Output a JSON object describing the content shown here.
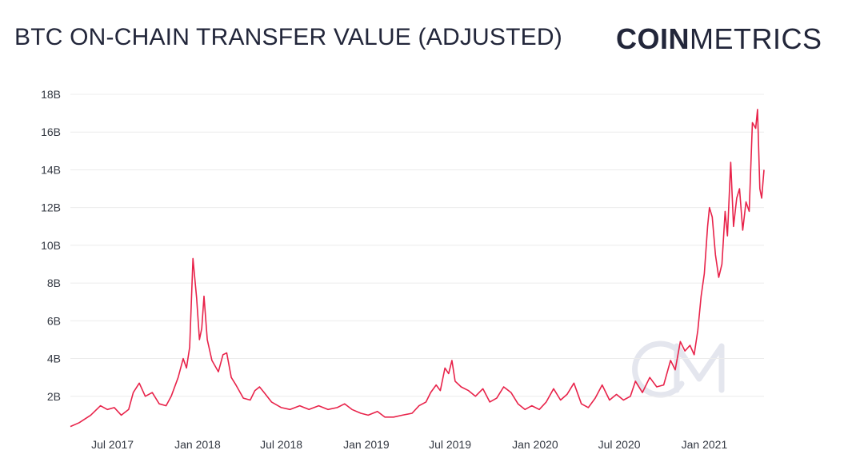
{
  "header": {
    "title": "BTC ON-CHAIN TRANSFER VALUE (ADJUSTED)",
    "brand_bold": "COIN",
    "brand_light": "METRICS"
  },
  "watermark": {
    "icon": "coinmetrics-cm-logo-icon",
    "color": "#e4e6ee"
  },
  "colors": {
    "line": "#e8234a",
    "grid": "#ececec",
    "text": "#22263a"
  },
  "chart_data": {
    "type": "line",
    "title": "BTC ON-CHAIN TRANSFER VALUE (ADJUSTED)",
    "xlabel": "",
    "ylabel": "",
    "ylim": [
      0,
      18
    ],
    "y_unit": "B",
    "y_ticks": [
      2,
      4,
      6,
      8,
      10,
      12,
      14,
      16,
      18
    ],
    "y_tick_labels": [
      "2B",
      "4B",
      "6B",
      "8B",
      "10B",
      "12B",
      "14B",
      "16B",
      "18B"
    ],
    "x_range": [
      "2017-04-01",
      "2021-05-10"
    ],
    "x_ticks": [
      "2017-07-01",
      "2018-01-01",
      "2018-07-01",
      "2019-01-01",
      "2019-07-01",
      "2020-01-01",
      "2020-07-01",
      "2021-01-01"
    ],
    "x_tick_labels": [
      "Jul 2017",
      "Jan 2018",
      "Jul 2018",
      "Jan 2019",
      "Jul 2019",
      "Jan 2020",
      "Jul 2020",
      "Jan 2021"
    ],
    "grid": true,
    "series": [
      {
        "color": "#e8234a",
        "points": [
          [
            "2017-04-01",
            0.4
          ],
          [
            "2017-04-20",
            0.6
          ],
          [
            "2017-05-15",
            1.0
          ],
          [
            "2017-06-05",
            1.5
          ],
          [
            "2017-06-20",
            1.3
          ],
          [
            "2017-07-05",
            1.4
          ],
          [
            "2017-07-20",
            1.0
          ],
          [
            "2017-08-05",
            1.3
          ],
          [
            "2017-08-15",
            2.2
          ],
          [
            "2017-08-28",
            2.7
          ],
          [
            "2017-09-10",
            2.0
          ],
          [
            "2017-09-25",
            2.2
          ],
          [
            "2017-10-10",
            1.6
          ],
          [
            "2017-10-25",
            1.5
          ],
          [
            "2017-11-05",
            2.0
          ],
          [
            "2017-11-20",
            3.0
          ],
          [
            "2017-12-01",
            4.0
          ],
          [
            "2017-12-08",
            3.5
          ],
          [
            "2017-12-15",
            4.6
          ],
          [
            "2017-12-22",
            9.3
          ],
          [
            "2017-12-30",
            7.2
          ],
          [
            "2018-01-05",
            5.0
          ],
          [
            "2018-01-10",
            5.6
          ],
          [
            "2018-01-15",
            7.3
          ],
          [
            "2018-01-22",
            5.0
          ],
          [
            "2018-02-01",
            3.9
          ],
          [
            "2018-02-15",
            3.3
          ],
          [
            "2018-02-25",
            4.2
          ],
          [
            "2018-03-05",
            4.3
          ],
          [
            "2018-03-15",
            3.0
          ],
          [
            "2018-03-25",
            2.6
          ],
          [
            "2018-04-10",
            1.9
          ],
          [
            "2018-04-25",
            1.8
          ],
          [
            "2018-05-05",
            2.3
          ],
          [
            "2018-05-15",
            2.5
          ],
          [
            "2018-05-25",
            2.2
          ],
          [
            "2018-06-10",
            1.7
          ],
          [
            "2018-07-01",
            1.4
          ],
          [
            "2018-07-20",
            1.3
          ],
          [
            "2018-08-10",
            1.5
          ],
          [
            "2018-08-30",
            1.3
          ],
          [
            "2018-09-20",
            1.5
          ],
          [
            "2018-10-10",
            1.3
          ],
          [
            "2018-10-30",
            1.4
          ],
          [
            "2018-11-15",
            1.6
          ],
          [
            "2018-12-01",
            1.3
          ],
          [
            "2018-12-20",
            1.1
          ],
          [
            "2019-01-05",
            1.0
          ],
          [
            "2019-01-25",
            1.2
          ],
          [
            "2019-02-10",
            0.9
          ],
          [
            "2019-03-01",
            0.9
          ],
          [
            "2019-03-20",
            1.0
          ],
          [
            "2019-04-10",
            1.1
          ],
          [
            "2019-04-25",
            1.5
          ],
          [
            "2019-05-10",
            1.7
          ],
          [
            "2019-05-20",
            2.2
          ],
          [
            "2019-06-01",
            2.6
          ],
          [
            "2019-06-10",
            2.3
          ],
          [
            "2019-06-20",
            3.5
          ],
          [
            "2019-06-28",
            3.2
          ],
          [
            "2019-07-05",
            3.9
          ],
          [
            "2019-07-12",
            2.8
          ],
          [
            "2019-07-25",
            2.5
          ],
          [
            "2019-08-10",
            2.3
          ],
          [
            "2019-08-25",
            2.0
          ],
          [
            "2019-09-10",
            2.4
          ],
          [
            "2019-09-25",
            1.7
          ],
          [
            "2019-10-10",
            1.9
          ],
          [
            "2019-10-25",
            2.5
          ],
          [
            "2019-11-10",
            2.2
          ],
          [
            "2019-11-25",
            1.6
          ],
          [
            "2019-12-10",
            1.3
          ],
          [
            "2019-12-25",
            1.5
          ],
          [
            "2020-01-10",
            1.3
          ],
          [
            "2020-01-25",
            1.7
          ],
          [
            "2020-02-10",
            2.4
          ],
          [
            "2020-02-25",
            1.8
          ],
          [
            "2020-03-10",
            2.1
          ],
          [
            "2020-03-25",
            2.7
          ],
          [
            "2020-04-10",
            1.6
          ],
          [
            "2020-04-25",
            1.4
          ],
          [
            "2020-05-10",
            1.9
          ],
          [
            "2020-05-25",
            2.6
          ],
          [
            "2020-06-10",
            1.8
          ],
          [
            "2020-06-25",
            2.1
          ],
          [
            "2020-07-10",
            1.8
          ],
          [
            "2020-07-25",
            2.0
          ],
          [
            "2020-08-05",
            2.8
          ],
          [
            "2020-08-20",
            2.2
          ],
          [
            "2020-09-05",
            3.0
          ],
          [
            "2020-09-20",
            2.5
          ],
          [
            "2020-10-05",
            2.6
          ],
          [
            "2020-10-20",
            3.9
          ],
          [
            "2020-10-30",
            3.4
          ],
          [
            "2020-11-10",
            4.9
          ],
          [
            "2020-11-20",
            4.4
          ],
          [
            "2020-12-01",
            4.7
          ],
          [
            "2020-12-10",
            4.2
          ],
          [
            "2020-12-18",
            5.5
          ],
          [
            "2020-12-25",
            7.3
          ],
          [
            "2021-01-01",
            8.5
          ],
          [
            "2021-01-08",
            11.0
          ],
          [
            "2021-01-12",
            12.0
          ],
          [
            "2021-01-18",
            11.5
          ],
          [
            "2021-01-25",
            9.5
          ],
          [
            "2021-02-01",
            8.3
          ],
          [
            "2021-02-08",
            9.0
          ],
          [
            "2021-02-15",
            11.8
          ],
          [
            "2021-02-20",
            10.5
          ],
          [
            "2021-02-27",
            14.4
          ],
          [
            "2021-03-05",
            11.0
          ],
          [
            "2021-03-12",
            12.5
          ],
          [
            "2021-03-18",
            13.0
          ],
          [
            "2021-03-25",
            10.8
          ],
          [
            "2021-04-01",
            12.3
          ],
          [
            "2021-04-08",
            11.8
          ],
          [
            "2021-04-15",
            16.5
          ],
          [
            "2021-04-22",
            16.2
          ],
          [
            "2021-04-26",
            17.2
          ],
          [
            "2021-05-01",
            13.0
          ],
          [
            "2021-05-05",
            12.5
          ],
          [
            "2021-05-10",
            14.0
          ]
        ]
      }
    ]
  }
}
